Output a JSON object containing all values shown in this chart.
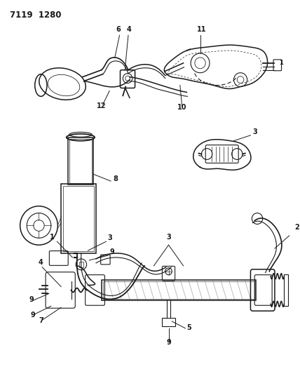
{
  "title": "7119  1280",
  "bg_color": "#ffffff",
  "line_color": "#1a1a1a",
  "figsize": [
    4.28,
    5.33
  ],
  "dpi": 100
}
